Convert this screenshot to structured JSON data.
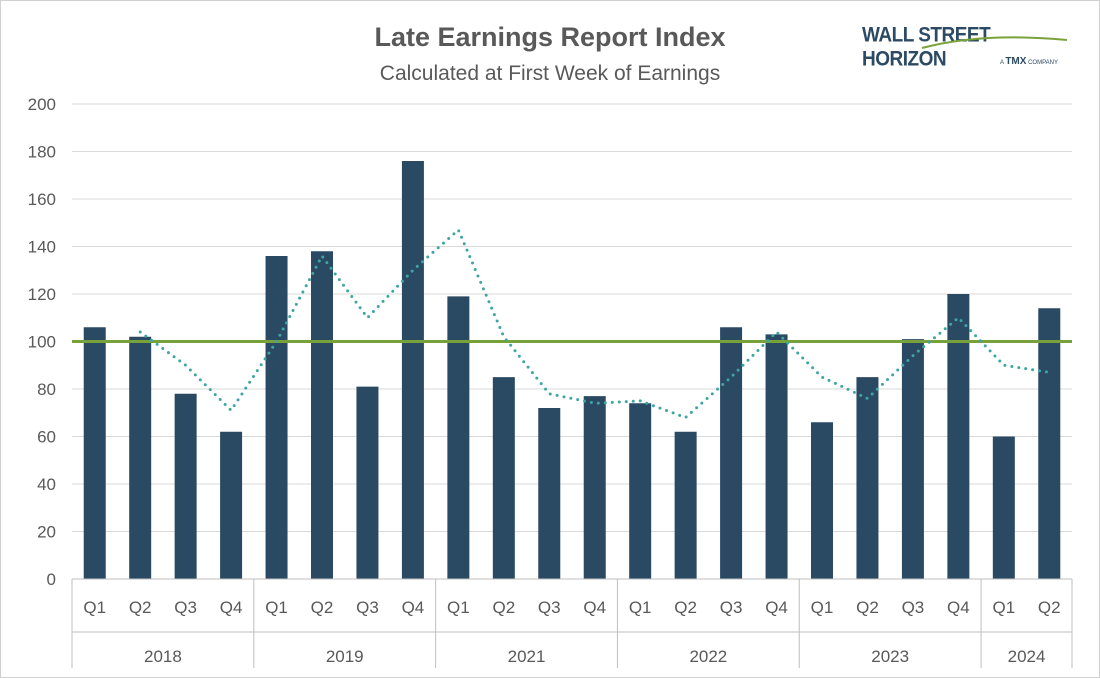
{
  "chart_data": {
    "type": "bar",
    "title": "Late Earnings Report Index",
    "subtitle": "Calculated at First Week of Earnings",
    "logo": {
      "name": "WALL STREET HORIZON",
      "tagline_pre": "A",
      "tagline_brand": "TMX",
      "tagline_post": "COMPANY"
    },
    "ylim": [
      0,
      200
    ],
    "yticks": [
      0,
      20,
      40,
      60,
      80,
      100,
      120,
      140,
      160,
      180,
      200
    ],
    "grid": true,
    "categories": [
      "Q1",
      "Q2",
      "Q3",
      "Q4",
      "Q1",
      "Q2",
      "Q3",
      "Q4",
      "Q1",
      "Q2",
      "Q3",
      "Q4",
      "Q1",
      "Q2",
      "Q3",
      "Q4",
      "Q1",
      "Q2",
      "Q3",
      "Q4",
      "Q1",
      "Q2"
    ],
    "groups": [
      {
        "label": "2018",
        "count": 4
      },
      {
        "label": "2019",
        "count": 4
      },
      {
        "label": "2021",
        "count": 4
      },
      {
        "label": "2022",
        "count": 4
      },
      {
        "label": "2023",
        "count": 4
      },
      {
        "label": "2024",
        "count": 2
      }
    ],
    "series": [
      {
        "type": "bar",
        "color": "#2a4a63",
        "values": [
          106,
          102,
          78,
          62,
          136,
          138,
          81,
          176,
          119,
          85,
          72,
          77,
          74,
          62,
          106,
          103,
          66,
          85,
          101,
          120,
          60,
          114
        ]
      },
      {
        "type": "line",
        "style": "dotted",
        "color": "#3ea6a1",
        "values": [
          null,
          104,
          90,
          71,
          100,
          136,
          110,
          130,
          147,
          102,
          78,
          74,
          75,
          68,
          85,
          104,
          85,
          76,
          94,
          110,
          90,
          87
        ]
      },
      {
        "type": "reference-line",
        "color": "#77a13a",
        "value": 100
      }
    ]
  }
}
